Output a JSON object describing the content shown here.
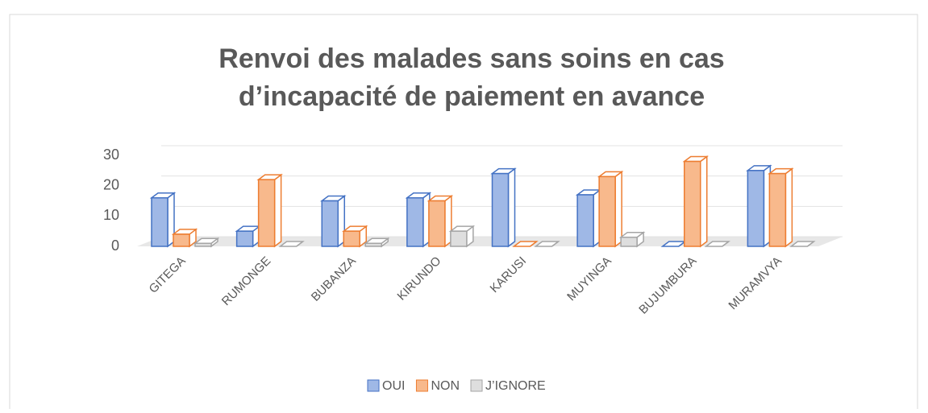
{
  "chart_data": {
    "type": "bar3d",
    "title": [
      "Renvoi des malades sans soins en cas",
      "d’incapacité de paiement en avance"
    ],
    "categories": [
      "GITEGA",
      "RUMONGE",
      "BUBANZA",
      "KIRUNDO",
      "KARUSI",
      "MUYINGA",
      "BUJUMBURA",
      "MURAMVYA"
    ],
    "series": [
      {
        "name": "OUI",
        "color": "#4472c4",
        "values": [
          16,
          5,
          15,
          16,
          24,
          17,
          0,
          25
        ]
      },
      {
        "name": "NON",
        "color": "#ed7d31",
        "values": [
          4,
          22,
          5,
          15,
          0,
          23,
          28,
          24
        ]
      },
      {
        "name": "J’IGNORE",
        "color": "#a5a5a5",
        "values": [
          1,
          0,
          1,
          5,
          0,
          3,
          0,
          0
        ]
      }
    ],
    "ylim": [
      0,
      30
    ],
    "yticks": [
      0,
      10,
      20,
      30
    ],
    "grid": true,
    "legend": "bottom"
  }
}
